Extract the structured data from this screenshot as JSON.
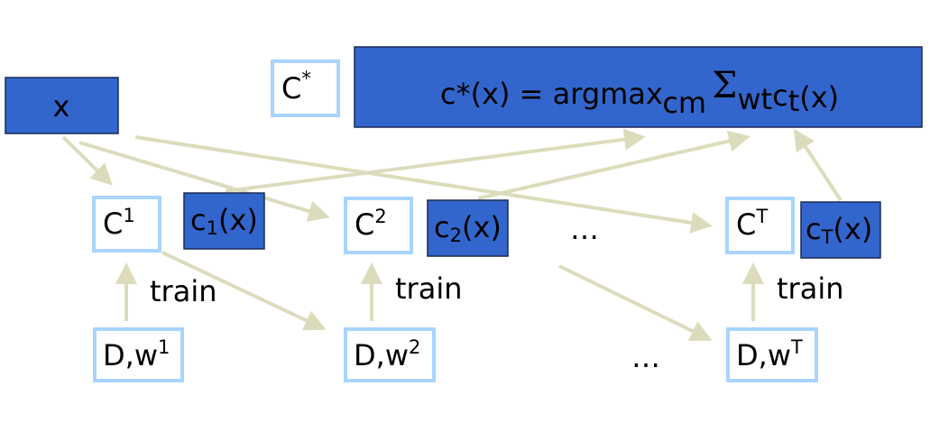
{
  "nodes": {
    "x": {
      "label": "x"
    },
    "c_star": {
      "base": "C",
      "sup": "*"
    },
    "formula": {
      "lead": "c*(x) = argmax",
      "sub": "cm",
      "sigma": "Σ",
      "sub2": "wt",
      "tail_base": "c",
      "tail_sub": "t",
      "tail": "(x)"
    },
    "c1": {
      "base": "C",
      "sup": "1"
    },
    "c1x": {
      "base": "c",
      "sub": "1",
      "tail": "(x)"
    },
    "c2": {
      "base": "C",
      "sup": "2"
    },
    "c2x": {
      "base": "c",
      "sub": "2",
      "tail": "(x)"
    },
    "cT": {
      "base": "C",
      "sup": "T"
    },
    "cTx": {
      "base": "c",
      "sub": "T",
      "tail": "(x)"
    },
    "dw1": {
      "base": "D,w",
      "sup": "1"
    },
    "dw2": {
      "base": "D,w",
      "sup": "2"
    },
    "dwT": {
      "base": "D,w",
      "sup": "T"
    }
  },
  "labels": {
    "train": [
      "train",
      "train",
      "train"
    ],
    "ellipsis": [
      "…",
      "…"
    ]
  }
}
